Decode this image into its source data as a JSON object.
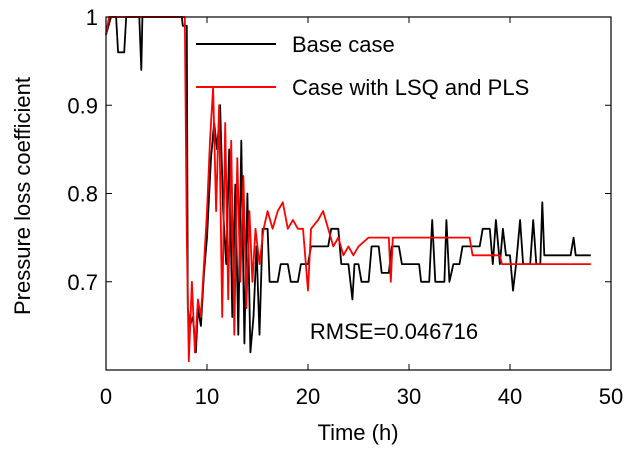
{
  "chart_data": {
    "type": "line",
    "xlabel": "Time (h)",
    "ylabel": "Pressure loss coefficient",
    "xlim": [
      0,
      50
    ],
    "ylim": [
      0.6,
      1.0
    ],
    "x_ticks": [
      0,
      10,
      20,
      30,
      40,
      50
    ],
    "x_tick_labels": [
      "0",
      "10",
      "20",
      "30",
      "40",
      "50"
    ],
    "y_ticks": [
      0.7,
      0.8,
      0.9,
      1.0
    ],
    "y_tick_labels": [
      "0.7",
      "0.8",
      "0.9",
      "1"
    ],
    "grid": false,
    "legend_position": "top-right",
    "annotation": "RMSE=0.046716",
    "series": [
      {
        "name": "Base case",
        "color": "#000000",
        "points": [
          [
            0,
            0.98
          ],
          [
            0.5,
            1.0
          ],
          [
            1,
            1.0
          ],
          [
            1.2,
            0.96
          ],
          [
            1.8,
            0.96
          ],
          [
            2,
            1.0
          ],
          [
            3.3,
            1.0
          ],
          [
            3.5,
            0.94
          ],
          [
            3.6,
            1.0
          ],
          [
            7.5,
            1.0
          ],
          [
            7.6,
            0.99
          ],
          [
            8,
            0.99
          ],
          [
            8.1,
            0.67
          ],
          [
            8.3,
            0.65
          ],
          [
            8.6,
            0.66
          ],
          [
            8.9,
            0.62
          ],
          [
            9.1,
            0.67
          ],
          [
            9.4,
            0.65
          ],
          [
            9.7,
            0.71
          ],
          [
            10,
            0.75
          ],
          [
            10.4,
            0.84
          ],
          [
            10.7,
            0.88
          ],
          [
            11,
            0.85
          ],
          [
            11.3,
            0.9
          ],
          [
            11.6,
            0.78
          ],
          [
            11.9,
            0.72
          ],
          [
            12.2,
            0.85
          ],
          [
            12.5,
            0.66
          ],
          [
            12.8,
            0.81
          ],
          [
            13.1,
            0.64
          ],
          [
            13.4,
            0.86
          ],
          [
            13.7,
            0.63
          ],
          [
            14,
            0.8
          ],
          [
            14.3,
            0.62
          ],
          [
            14.6,
            0.66
          ],
          [
            14.9,
            0.74
          ],
          [
            15.2,
            0.64
          ],
          [
            15.5,
            0.76
          ],
          [
            16,
            0.76
          ],
          [
            16.2,
            0.7
          ],
          [
            17,
            0.7
          ],
          [
            17.3,
            0.72
          ],
          [
            18,
            0.72
          ],
          [
            18.3,
            0.7
          ],
          [
            19,
            0.7
          ],
          [
            19.3,
            0.72
          ],
          [
            20,
            0.72
          ],
          [
            20.3,
            0.74
          ],
          [
            22,
            0.74
          ],
          [
            22.3,
            0.76
          ],
          [
            23,
            0.76
          ],
          [
            23.3,
            0.72
          ],
          [
            24,
            0.72
          ],
          [
            24.4,
            0.68
          ],
          [
            24.6,
            0.72
          ],
          [
            25,
            0.72
          ],
          [
            25.3,
            0.7
          ],
          [
            26,
            0.7
          ],
          [
            26.3,
            0.74
          ],
          [
            27,
            0.74
          ],
          [
            27.3,
            0.71
          ],
          [
            28,
            0.71
          ],
          [
            28.3,
            0.74
          ],
          [
            29,
            0.74
          ],
          [
            29.3,
            0.72
          ],
          [
            31,
            0.72
          ],
          [
            31.2,
            0.7
          ],
          [
            32,
            0.7
          ],
          [
            32.3,
            0.77
          ],
          [
            32.6,
            0.7
          ],
          [
            33.5,
            0.7
          ],
          [
            33.7,
            0.77
          ],
          [
            34,
            0.7
          ],
          [
            34.4,
            0.72
          ],
          [
            35,
            0.72
          ],
          [
            35.3,
            0.74
          ],
          [
            37,
            0.74
          ],
          [
            37.3,
            0.76
          ],
          [
            38,
            0.76
          ],
          [
            38.3,
            0.72
          ],
          [
            38.6,
            0.77
          ],
          [
            39,
            0.72
          ],
          [
            39.3,
            0.76
          ],
          [
            39.6,
            0.73
          ],
          [
            40,
            0.73
          ],
          [
            40.3,
            0.69
          ],
          [
            40.6,
            0.72
          ],
          [
            41,
            0.77
          ],
          [
            41.3,
            0.72
          ],
          [
            42,
            0.72
          ],
          [
            42.3,
            0.77
          ],
          [
            42.6,
            0.72
          ],
          [
            43,
            0.72
          ],
          [
            43.2,
            0.79
          ],
          [
            43.4,
            0.73
          ],
          [
            46,
            0.73
          ],
          [
            46.3,
            0.75
          ],
          [
            46.5,
            0.73
          ],
          [
            48,
            0.73
          ]
        ]
      },
      {
        "name": "Case with LSQ and PLS",
        "color": "#ff0000",
        "points": [
          [
            0,
            0.98
          ],
          [
            0.3,
            1.0
          ],
          [
            7.8,
            1.0
          ],
          [
            8,
            0.75
          ],
          [
            8.2,
            0.61
          ],
          [
            8.5,
            0.7
          ],
          [
            8.8,
            0.62
          ],
          [
            9.1,
            0.68
          ],
          [
            9.4,
            0.66
          ],
          [
            9.7,
            0.72
          ],
          [
            10,
            0.78
          ],
          [
            10.3,
            0.86
          ],
          [
            10.6,
            0.92
          ],
          [
            10.9,
            0.78
          ],
          [
            11.2,
            0.9
          ],
          [
            11.5,
            0.66
          ],
          [
            11.8,
            0.88
          ],
          [
            12.1,
            0.68
          ],
          [
            12.4,
            0.86
          ],
          [
            12.7,
            0.64
          ],
          [
            13,
            0.84
          ],
          [
            13.3,
            0.7
          ],
          [
            13.6,
            0.82
          ],
          [
            13.9,
            0.67
          ],
          [
            14.2,
            0.78
          ],
          [
            14.5,
            0.7
          ],
          [
            14.8,
            0.76
          ],
          [
            15.2,
            0.72
          ],
          [
            15.6,
            0.76
          ],
          [
            16,
            0.78
          ],
          [
            16.5,
            0.76
          ],
          [
            17,
            0.78
          ],
          [
            17.5,
            0.79
          ],
          [
            18,
            0.76
          ],
          [
            18.5,
            0.77
          ],
          [
            19,
            0.76
          ],
          [
            19.5,
            0.76
          ],
          [
            20,
            0.69
          ],
          [
            20.3,
            0.76
          ],
          [
            21,
            0.77
          ],
          [
            21.5,
            0.78
          ],
          [
            22,
            0.76
          ],
          [
            22.5,
            0.74
          ],
          [
            23,
            0.75
          ],
          [
            23.5,
            0.73
          ],
          [
            24,
            0.74
          ],
          [
            24.5,
            0.73
          ],
          [
            25,
            0.74
          ],
          [
            26,
            0.75
          ],
          [
            27,
            0.75
          ],
          [
            28,
            0.75
          ],
          [
            28.2,
            0.7
          ],
          [
            28.4,
            0.75
          ],
          [
            30,
            0.75
          ],
          [
            30.2,
            0.75
          ],
          [
            32,
            0.75
          ],
          [
            32.5,
            0.75
          ],
          [
            36,
            0.75
          ],
          [
            36.3,
            0.73
          ],
          [
            39,
            0.73
          ],
          [
            39.2,
            0.72
          ],
          [
            40,
            0.72
          ],
          [
            40.3,
            0.72
          ],
          [
            43,
            0.72
          ],
          [
            48,
            0.72
          ]
        ]
      }
    ]
  }
}
